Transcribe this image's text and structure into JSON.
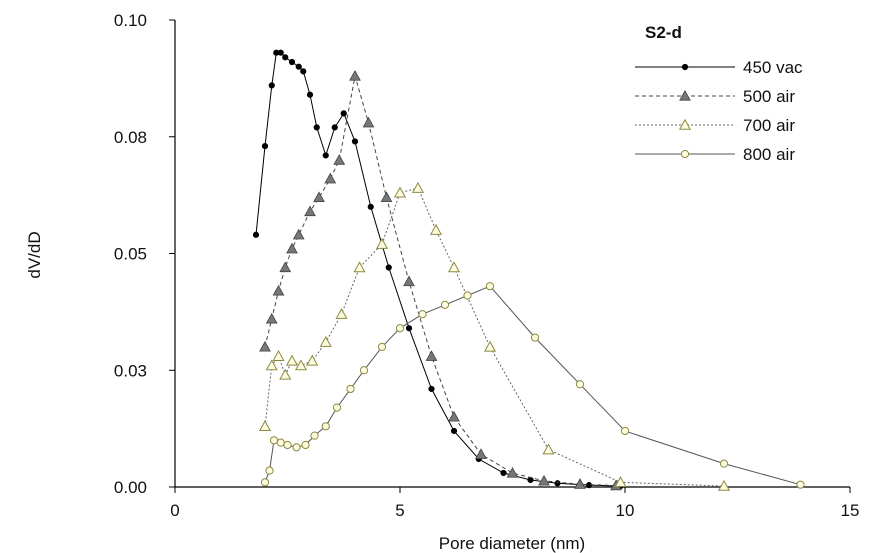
{
  "chart_data": {
    "type": "line",
    "title": "",
    "xlabel": "Pore diameter (nm)",
    "ylabel": "dV/dD",
    "xlim": [
      0,
      15
    ],
    "ylim": [
      0,
      0.1
    ],
    "xticks": [
      0,
      5,
      10,
      15
    ],
    "yticks": [
      0,
      0.025,
      0.05,
      0.075,
      0.1
    ],
    "yticklabels": [
      "0.00",
      "0.03",
      "0.05",
      "0.08",
      "0.10"
    ],
    "grid": false,
    "legend": {
      "title": "S2-d",
      "placement": "top-right"
    },
    "series": [
      {
        "name": "450 vac",
        "color": "#000000",
        "dash": "",
        "marker": "filled-circle",
        "x": [
          1.8,
          2.0,
          2.15,
          2.25,
          2.35,
          2.45,
          2.6,
          2.75,
          2.85,
          3.0,
          3.15,
          3.35,
          3.55,
          3.75,
          4.0,
          4.35,
          4.75,
          5.2,
          5.7,
          6.2,
          6.75,
          7.3,
          7.9,
          8.5,
          9.2,
          9.9
        ],
        "y": [
          0.054,
          0.073,
          0.086,
          0.093,
          0.093,
          0.092,
          0.091,
          0.09,
          0.089,
          0.084,
          0.077,
          0.071,
          0.077,
          0.08,
          0.074,
          0.06,
          0.047,
          0.034,
          0.021,
          0.012,
          0.006,
          0.003,
          0.0015,
          0.0008,
          0.0004,
          0.0002
        ]
      },
      {
        "name": "500 air",
        "color": "#444444",
        "dash": "4,3",
        "marker": "filled-triangle",
        "x": [
          2.0,
          2.15,
          2.3,
          2.45,
          2.6,
          2.75,
          3.0,
          3.2,
          3.45,
          3.65,
          4.0,
          4.3,
          4.7,
          5.2,
          5.7,
          6.2,
          6.8,
          7.5,
          8.2,
          9.0,
          9.8
        ],
        "y": [
          0.03,
          0.036,
          0.042,
          0.047,
          0.051,
          0.054,
          0.059,
          0.062,
          0.066,
          0.07,
          0.088,
          0.078,
          0.062,
          0.044,
          0.028,
          0.015,
          0.007,
          0.003,
          0.0013,
          0.0006,
          0.0003
        ]
      },
      {
        "name": "700 air",
        "color": "#666666",
        "dash": "2,2",
        "marker": "open-triangle",
        "x": [
          2.0,
          2.15,
          2.3,
          2.45,
          2.6,
          2.8,
          3.05,
          3.35,
          3.7,
          4.1,
          4.6,
          5.0,
          5.4,
          5.8,
          6.2,
          7.0,
          8.3,
          9.9,
          12.2
        ],
        "y": [
          0.013,
          0.026,
          0.028,
          0.024,
          0.027,
          0.026,
          0.027,
          0.031,
          0.037,
          0.047,
          0.052,
          0.063,
          0.064,
          0.055,
          0.047,
          0.03,
          0.008,
          0.001,
          0.0002
        ]
      },
      {
        "name": "800 air",
        "color": "#555555",
        "dash": "",
        "marker": "open-circle",
        "x": [
          2.0,
          2.1,
          2.2,
          2.35,
          2.5,
          2.7,
          2.9,
          3.1,
          3.35,
          3.6,
          3.9,
          4.2,
          4.6,
          5.0,
          5.5,
          6.0,
          6.5,
          7.0,
          8.0,
          9.0,
          10.0,
          12.2,
          13.9
        ],
        "y": [
          0.001,
          0.0035,
          0.01,
          0.0095,
          0.009,
          0.0085,
          0.009,
          0.011,
          0.013,
          0.017,
          0.021,
          0.025,
          0.03,
          0.034,
          0.037,
          0.039,
          0.041,
          0.043,
          0.032,
          0.022,
          0.012,
          0.005,
          0.0005
        ]
      }
    ]
  }
}
